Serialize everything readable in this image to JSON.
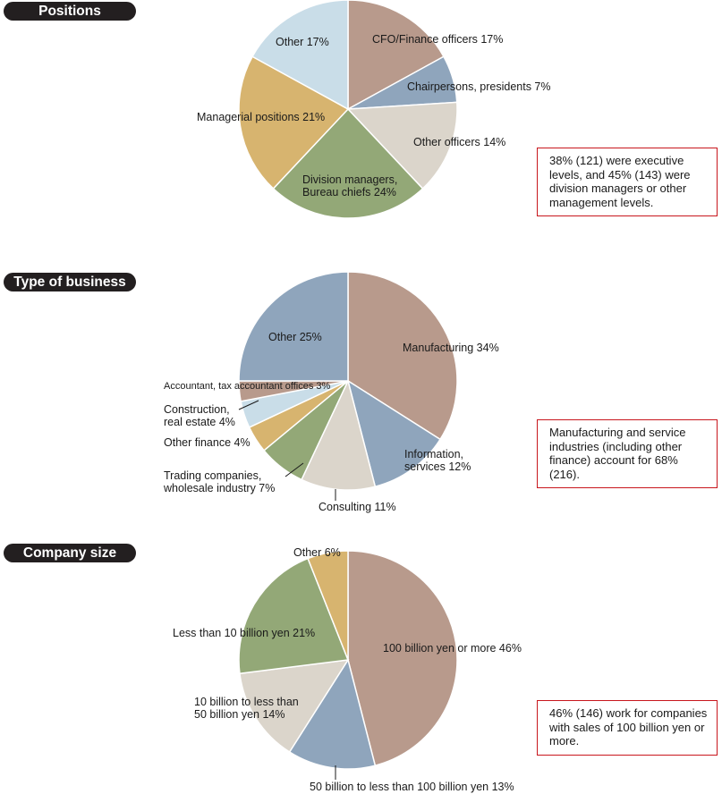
{
  "sections": [
    {
      "title": "Positions",
      "note": "38% (121) were executive levels, and 45% (143) were division managers or other management levels."
    },
    {
      "title": "Type of business",
      "note": "Manufacturing and service industries (including other finance) account for 68% (216)."
    },
    {
      "title": "Company size",
      "note": "46% (146) work for companies with sales of 100 billion yen or more."
    }
  ],
  "chart_data": [
    {
      "type": "pie",
      "title": "Positions",
      "slices": [
        {
          "label": "CFO/Finance officers 17%",
          "value": 17,
          "color": "#b89a8c"
        },
        {
          "label": "Chairpersons, presidents 7%",
          "value": 7,
          "color": "#8fa5bc"
        },
        {
          "label": "Other officers 14%",
          "value": 14,
          "color": "#dbd5cb"
        },
        {
          "label": [
            "Division managers,",
            "Bureau chiefs  24%"
          ],
          "value": 24,
          "color": "#93a877"
        },
        {
          "label": "Managerial positions 21%",
          "value": 21,
          "color": "#d7b46f"
        },
        {
          "label": "Other 17%",
          "value": 17,
          "color": "#c9dde8"
        }
      ]
    },
    {
      "type": "pie",
      "title": "Type of business",
      "slices": [
        {
          "label": "Manufacturing 34%",
          "value": 34,
          "color": "#b89a8c"
        },
        {
          "label": [
            "Information,",
            "services 12%"
          ],
          "value": 12,
          "color": "#8fa5bc"
        },
        {
          "label": "Consulting 11%",
          "value": 11,
          "color": "#dbd5cb"
        },
        {
          "label": [
            "Trading companies,",
            "wholesale industry 7%"
          ],
          "value": 7,
          "color": "#93a877"
        },
        {
          "label": "Other finance 4%",
          "value": 4,
          "color": "#d7b46f"
        },
        {
          "label": [
            "Construction,",
            "real estate 4%"
          ],
          "value": 4,
          "color": "#c9dde8"
        },
        {
          "label": "Accountant, tax accountant offices  3%",
          "value": 3,
          "color": "#b89a8c"
        },
        {
          "label": "Other 25%",
          "value": 25,
          "color": "#8fa5bc"
        }
      ]
    },
    {
      "type": "pie",
      "title": "Company size",
      "slices": [
        {
          "label": "100 billion yen or more 46%",
          "value": 46,
          "color": "#b89a8c"
        },
        {
          "label": "50 billion to less than 100 billion yen 13%",
          "value": 13,
          "color": "#8fa5bc"
        },
        {
          "label": [
            "10 billion to less than",
            "50 billion yen 14%"
          ],
          "value": 14,
          "color": "#dbd5cb"
        },
        {
          "label": "Less than 10 billion yen 21%",
          "value": 21,
          "color": "#93a877"
        },
        {
          "label": "Other 6%",
          "value": 6,
          "color": "#d7b46f"
        }
      ]
    }
  ]
}
